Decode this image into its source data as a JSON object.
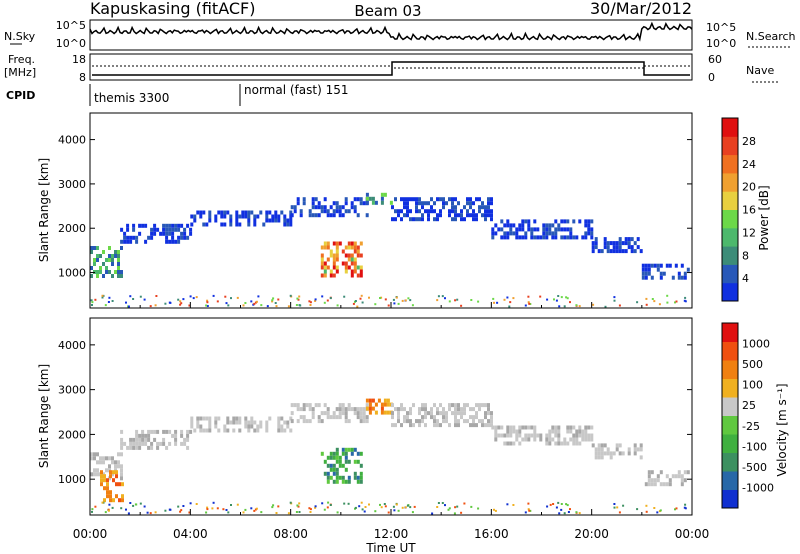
{
  "header": {
    "station": "Kapuskasing (fitACF)",
    "beam": "Beam 03",
    "date": "30/Mar/2012"
  },
  "sky_panel": {
    "left_label": "N.Sky",
    "left_ticks": [
      "10^5",
      "10^0"
    ],
    "right_label": "N.Search",
    "right_ticks": [
      "10^5",
      "10^0"
    ]
  },
  "freq_panel": {
    "left_label_1": "Freq.",
    "left_label_2": "[MHz]",
    "left_ticks": [
      "18",
      "8"
    ],
    "right_label": "Nave",
    "right_ticks": [
      "60",
      "0"
    ]
  },
  "cpid_panel": {
    "label": "CPID",
    "segments": [
      {
        "start": 0,
        "label": "themis 3300"
      },
      {
        "start": 6,
        "label": "normal (fast) 151"
      }
    ]
  },
  "chart_data": [
    {
      "type": "heatmap",
      "title": "Power",
      "ylabel": "Slant Range [km]",
      "xlim": [
        0,
        24
      ],
      "ylim": [
        200,
        4600
      ],
      "y_ticks": [
        "1000",
        "2000",
        "3000",
        "4000"
      ],
      "x_ticks": [
        "00:00",
        "04:00",
        "08:00",
        "12:00",
        "16:00",
        "20:00",
        "00:00"
      ],
      "colorbar": {
        "label": "Power [dB]",
        "ticks": [
          "4",
          "8",
          "12",
          "16",
          "20",
          "24",
          "28"
        ],
        "colors": [
          "#1030e0",
          "#2858b8",
          "#3c8c78",
          "#4cb86c",
          "#6cd848",
          "#e8d040",
          "#f0a030",
          "#f07020",
          "#e84020",
          "#e01010"
        ]
      },
      "echo_bands_km": [
        {
          "x": [
            0.0,
            1.2
          ],
          "y": [
            900,
            1600
          ],
          "level": "medium"
        },
        {
          "x": [
            1.2,
            4.0
          ],
          "y": [
            1700,
            2100
          ],
          "level": "low"
        },
        {
          "x": [
            4.0,
            8.0
          ],
          "y": [
            2100,
            2400
          ],
          "level": "low"
        },
        {
          "x": [
            8.0,
            11.0
          ],
          "y": [
            2300,
            2700
          ],
          "level": "low"
        },
        {
          "x": [
            9.2,
            10.8
          ],
          "y": [
            900,
            1700
          ],
          "level": "high"
        },
        {
          "x": [
            11.0,
            12.0
          ],
          "y": [
            2600,
            2800
          ],
          "level": "medium"
        },
        {
          "x": [
            12.0,
            16.0
          ],
          "y": [
            2200,
            2700
          ],
          "level": "low"
        },
        {
          "x": [
            16.0,
            20.0
          ],
          "y": [
            1800,
            2200
          ],
          "level": "low"
        },
        {
          "x": [
            20.0,
            22.0
          ],
          "y": [
            1500,
            1800
          ],
          "level": "low"
        },
        {
          "x": [
            22.0,
            24.0
          ],
          "y": [
            900,
            1200
          ],
          "level": "low"
        }
      ]
    },
    {
      "type": "heatmap",
      "title": "Velocity",
      "ylabel": "Slant Range [km]",
      "xlabel": "Time UT",
      "xlim": [
        0,
        24
      ],
      "ylim": [
        200,
        4600
      ],
      "y_ticks": [
        "1000",
        "2000",
        "3000",
        "4000"
      ],
      "x_ticks": [
        "00:00",
        "04:00",
        "08:00",
        "12:00",
        "16:00",
        "20:00",
        "00:00"
      ],
      "colorbar": {
        "label": "Velocity [m s⁻¹]",
        "ticks": [
          "1000",
          "500",
          "100",
          "25",
          "-25",
          "-100",
          "-500",
          "-1000"
        ],
        "colors": [
          "#1030d0",
          "#2868a8",
          "#3c9060",
          "#40b040",
          "#60c840",
          "#c8c8c8",
          "#f0b020",
          "#f08010",
          "#f05010",
          "#e01010"
        ]
      },
      "echo_bands_km": [
        {
          "x": [
            0.0,
            1.2
          ],
          "y": [
            1000,
            1600
          ],
          "level": "ground"
        },
        {
          "x": [
            0.4,
            1.3
          ],
          "y": [
            500,
            1200
          ],
          "level": "away"
        },
        {
          "x": [
            1.2,
            4.0
          ],
          "y": [
            1700,
            2100
          ],
          "level": "ground"
        },
        {
          "x": [
            4.0,
            8.0
          ],
          "y": [
            2100,
            2400
          ],
          "level": "ground"
        },
        {
          "x": [
            8.0,
            11.0
          ],
          "y": [
            2300,
            2700
          ],
          "level": "ground"
        },
        {
          "x": [
            9.2,
            10.8
          ],
          "y": [
            900,
            1700
          ],
          "level": "toward"
        },
        {
          "x": [
            11.0,
            12.0
          ],
          "y": [
            2500,
            2800
          ],
          "level": "away"
        },
        {
          "x": [
            12.0,
            16.0
          ],
          "y": [
            2200,
            2700
          ],
          "level": "ground"
        },
        {
          "x": [
            16.0,
            20.0
          ],
          "y": [
            1800,
            2200
          ],
          "level": "ground"
        },
        {
          "x": [
            20.0,
            22.0
          ],
          "y": [
            1500,
            1800
          ],
          "level": "ground"
        },
        {
          "x": [
            22.0,
            24.0
          ],
          "y": [
            900,
            1200
          ],
          "level": "ground"
        }
      ]
    }
  ]
}
